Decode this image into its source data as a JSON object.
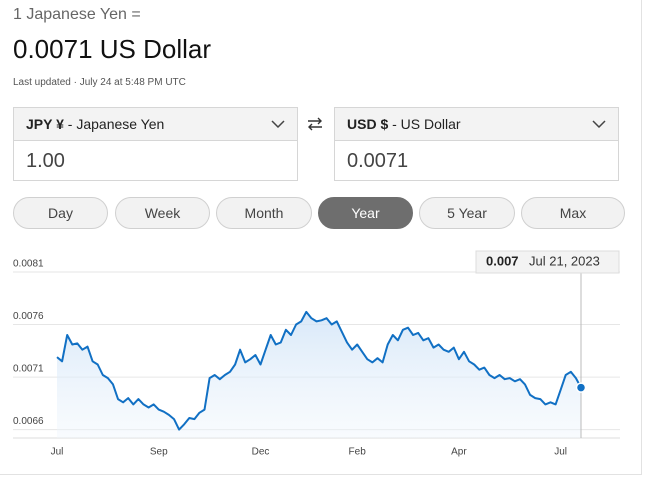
{
  "header": {
    "title": "1 Japanese Yen =",
    "rate": "0.0071 US Dollar",
    "updated": "Last updated · July 24 at 5:48 PM UTC"
  },
  "converter": {
    "from": {
      "code": "JPY ¥",
      "name": " - Japanese Yen",
      "amount": "1.00"
    },
    "to": {
      "code": "USD $",
      "name": " - US Dollar",
      "amount": "0.0071"
    }
  },
  "ranges": {
    "buttons": [
      "Day",
      "Week",
      "Month",
      "Year",
      "5 Year",
      "Max"
    ],
    "selected": 3
  },
  "chart_data": {
    "type": "line",
    "categories": [
      "Jul",
      null,
      null,
      null,
      null,
      null,
      null,
      null,
      null,
      null,
      null,
      null,
      null,
      null,
      null,
      null,
      null,
      null,
      null,
      null,
      "Sep",
      null,
      null,
      null,
      null,
      null,
      null,
      null,
      null,
      null,
      null,
      null,
      null,
      null,
      null,
      null,
      null,
      null,
      null,
      null,
      "Dec",
      null,
      null,
      null,
      null,
      null,
      null,
      null,
      null,
      null,
      null,
      null,
      null,
      null,
      null,
      null,
      null,
      null,
      null,
      "Feb",
      null,
      null,
      null,
      null,
      null,
      null,
      null,
      null,
      null,
      null,
      null,
      null,
      null,
      null,
      null,
      null,
      null,
      null,
      null,
      "Apr",
      null,
      null,
      null,
      null,
      null,
      null,
      null,
      null,
      null,
      null,
      null,
      null,
      null,
      null,
      null,
      null,
      null,
      null,
      null,
      "Jul",
      null,
      null,
      null,
      null
    ],
    "series": [
      {
        "color": "#1170c4",
        "values": [
          0.00729,
          0.00725,
          0.0075,
          0.00741,
          0.00742,
          0.00736,
          0.00739,
          0.00725,
          0.00722,
          0.00712,
          0.00709,
          0.00703,
          0.00689,
          0.00686,
          0.0069,
          0.00684,
          0.00689,
          0.00684,
          0.00681,
          0.00684,
          0.00679,
          0.00677,
          0.00674,
          0.0067,
          0.0066,
          0.00665,
          0.00671,
          0.0067,
          0.00676,
          0.00679,
          0.00709,
          0.00712,
          0.00708,
          0.00712,
          0.00715,
          0.00722,
          0.00736,
          0.00724,
          0.00727,
          0.00731,
          0.00722,
          0.00736,
          0.0075,
          0.00741,
          0.00743,
          0.00755,
          0.0075,
          0.0076,
          0.00763,
          0.00772,
          0.00766,
          0.00763,
          0.00764,
          0.00766,
          0.0076,
          0.00763,
          0.00753,
          0.00743,
          0.00736,
          0.00741,
          0.00734,
          0.00727,
          0.00724,
          0.00728,
          0.00724,
          0.00741,
          0.0075,
          0.00745,
          0.00755,
          0.00757,
          0.0075,
          0.00752,
          0.00745,
          0.00747,
          0.00738,
          0.00741,
          0.00736,
          0.00734,
          0.00738,
          0.00727,
          0.00734,
          0.00725,
          0.00722,
          0.00717,
          0.00719,
          0.00712,
          0.00709,
          0.00712,
          0.00708,
          0.00709,
          0.00706,
          0.00708,
          0.00703,
          0.00693,
          0.0069,
          0.00689,
          0.00684,
          0.00686,
          0.00684,
          0.00698,
          0.00712,
          0.00715,
          0.00709,
          0.007
        ]
      }
    ],
    "ylim": [
      0.00652,
      0.0081
    ],
    "yticks": [
      0.0066,
      0.0071,
      0.0076,
      0.0081
    ],
    "grid": true,
    "tooltip": {
      "value": 0.007,
      "date": "Jul 21, 2023"
    }
  }
}
